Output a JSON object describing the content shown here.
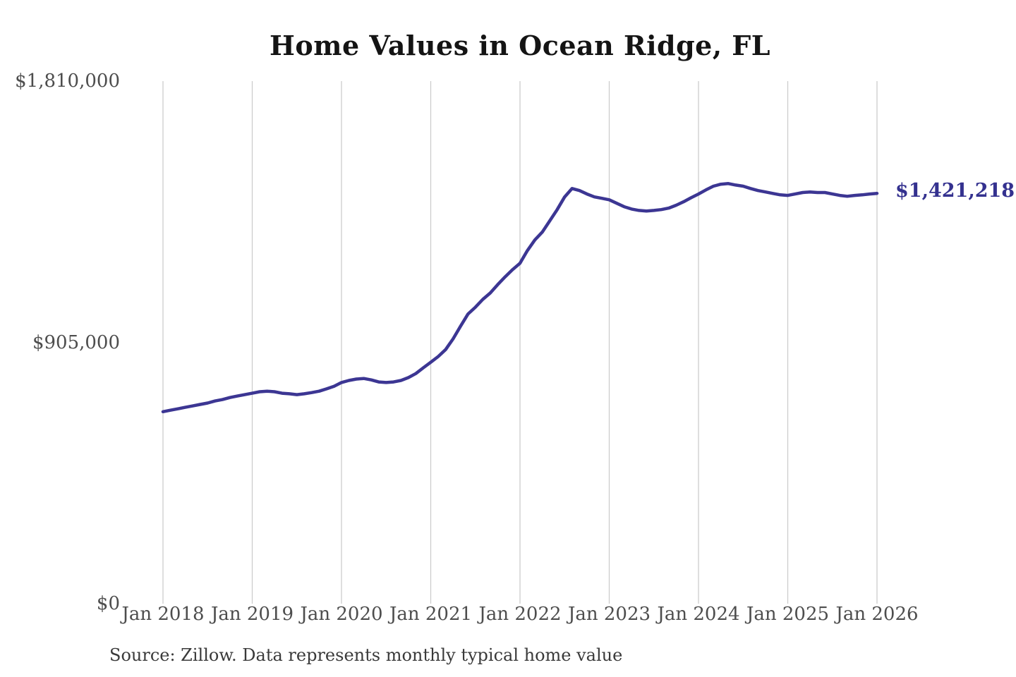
{
  "title": "Home Values in Ocean Ridge, FL",
  "source_note": "Source: Zillow. Data represents monthly typical home value",
  "colors": {
    "line": "#3c3693",
    "end_label": "#34318f",
    "grid": "#cccccc",
    "tick_text": "#4d4d4d",
    "title_text": "#141414",
    "source_text": "#3a3a3a",
    "background": "#ffffff"
  },
  "chart_data": {
    "type": "line",
    "title": "Home Values in Ocean Ridge, FL",
    "frequency": "monthly",
    "x_start_month": "2018-01",
    "x_end_month": "2026-01",
    "x_tick_labels": [
      "Jan 2018",
      "Jan 2019",
      "Jan 2020",
      "Jan 2021",
      "Jan 2022",
      "Jan 2023",
      "Jan 2024",
      "Jan 2025",
      "Jan 2026"
    ],
    "y_ticks": [
      {
        "label": "$0",
        "value": 0
      },
      {
        "label": "$905,000",
        "value": 905000
      },
      {
        "label": "$1,810,000",
        "value": 1810000
      }
    ],
    "ylim": [
      0,
      1810000
    ],
    "grid": "vertical",
    "legend": "none",
    "end_value": 1421218,
    "end_value_label": "$1,421,218",
    "series": [
      {
        "name": "Monthly typical home value",
        "values": [
          665000,
          670000,
          675000,
          680000,
          685000,
          690000,
          695000,
          702000,
          707000,
          714000,
          719000,
          724000,
          729000,
          734000,
          736000,
          734000,
          729000,
          727000,
          724000,
          727000,
          731000,
          736000,
          744000,
          753000,
          766000,
          773000,
          778000,
          780000,
          775000,
          768000,
          766000,
          768000,
          773000,
          783000,
          797000,
          817000,
          836000,
          856000,
          880000,
          917000,
          961000,
          1003000,
          1027000,
          1054000,
          1076000,
          1105000,
          1132000,
          1157000,
          1179000,
          1223000,
          1260000,
          1287000,
          1326000,
          1365000,
          1409000,
          1438000,
          1431000,
          1419000,
          1409000,
          1404000,
          1399000,
          1387000,
          1375000,
          1367000,
          1362000,
          1360000,
          1362000,
          1365000,
          1370000,
          1380000,
          1392000,
          1406000,
          1419000,
          1433000,
          1446000,
          1453000,
          1455000,
          1450000,
          1446000,
          1438000,
          1431000,
          1426000,
          1421000,
          1416000,
          1414000,
          1419000,
          1424000,
          1426000,
          1424000,
          1424000,
          1419000,
          1414000,
          1411000,
          1414000,
          1416000,
          1419000,
          1421218
        ]
      }
    ]
  }
}
